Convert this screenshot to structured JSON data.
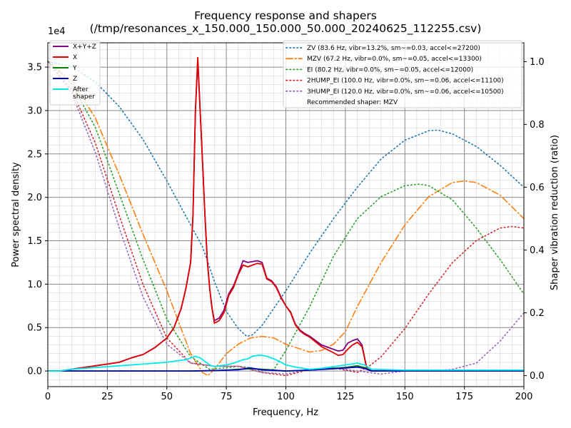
{
  "chart_data": {
    "type": "line",
    "title_line1": "Frequency response and shapers",
    "title_line2": "(/tmp/resonances_x_150.000_150.000_50.000_20240625_112255.csv)",
    "xlabel": "Frequency, Hz",
    "ylabel_left": "Power spectral density",
    "ylabel_right": "Shaper vibration reduction (ratio)",
    "y_left_multiplier": "1e4",
    "xlim": [
      0,
      200
    ],
    "ylim_left": [
      -1800,
      37800
    ],
    "ylim_right": [
      -0.035,
      1.06
    ],
    "x_ticks": [
      0,
      25,
      50,
      75,
      100,
      125,
      150,
      175,
      200
    ],
    "x_tick_labels": [
      "0",
      "25",
      "50",
      "75",
      "100",
      "125",
      "150",
      "175",
      "200"
    ],
    "y_left_ticks": [
      0,
      5000,
      10000,
      15000,
      20000,
      25000,
      30000,
      35000
    ],
    "y_left_tick_labels": [
      "0.0",
      "0.5",
      "1.0",
      "1.5",
      "2.0",
      "2.5",
      "3.0",
      "3.5"
    ],
    "y_right_ticks": [
      0,
      0.2,
      0.4,
      0.6,
      0.8,
      1.0
    ],
    "y_right_tick_labels": [
      "0.0",
      "0.2",
      "0.4",
      "0.6",
      "0.8",
      "1.0"
    ],
    "grid": true,
    "legend_left_placement": "upper-left",
    "legend_right_placement": "upper-right",
    "legend_left": [
      "X+Y+Z",
      "X",
      "Y",
      "Z",
      "After\nshaper"
    ],
    "legend_right": [
      "ZV (83.6 Hz, vibr=13.2%, sm~=0.03, accel<=27200)",
      "MZV (67.2 Hz, vibr=0.0%, sm~=0.05, accel<=13300)",
      "EI (80.2 Hz, vibr=0.0%, sm~=0.05, accel<=12000)",
      "2HUMP_EI (100.0 Hz, vibr=0.0%, sm~=0.06, accel<=11100)",
      "3HUMP_EI (120.0 Hz, vibr=0.0%, sm~=0.06, accel<=10500)",
      "Recommended shaper: MZV"
    ],
    "psd_series": [
      {
        "name": "X+Y+Z",
        "color": "#800080",
        "x": [
          0,
          5,
          10,
          15,
          20,
          25,
          30,
          35,
          40,
          45,
          50,
          53,
          56,
          58,
          60,
          61,
          62,
          63,
          64,
          65,
          66,
          67,
          68,
          69,
          70,
          72,
          74,
          76,
          78,
          80,
          82,
          84,
          86,
          88,
          90,
          92,
          94,
          96,
          98,
          100,
          102,
          104,
          106,
          108,
          110,
          115,
          120,
          122,
          124,
          126,
          128,
          130,
          132,
          134,
          136,
          150,
          175,
          200
        ],
        "y": [
          0,
          0,
          200,
          400,
          600,
          800,
          1000,
          1500,
          1900,
          2700,
          3800,
          5000,
          7200,
          9500,
          12500,
          18000,
          30000,
          35800,
          30000,
          24000,
          18000,
          12800,
          9500,
          7200,
          5800,
          6100,
          7000,
          8900,
          9800,
          11200,
          12700,
          12500,
          12600,
          12700,
          12500,
          10700,
          10400,
          9700,
          8500,
          7500,
          6800,
          5400,
          4700,
          4300,
          4000,
          3000,
          2500,
          2300,
          2400,
          3200,
          3500,
          3700,
          3000,
          300,
          0,
          0,
          0,
          0
        ]
      },
      {
        "name": "X",
        "color": "#e00000",
        "x": [
          0,
          5,
          10,
          15,
          20,
          25,
          30,
          35,
          40,
          45,
          50,
          53,
          56,
          58,
          60,
          61,
          62,
          63,
          64,
          65,
          66,
          67,
          68,
          69,
          70,
          72,
          74,
          76,
          78,
          80,
          82,
          84,
          86,
          88,
          90,
          92,
          94,
          96,
          98,
          100,
          102,
          104,
          106,
          108,
          110,
          115,
          120,
          122,
          124,
          126,
          128,
          130,
          132,
          134,
          136,
          150,
          175,
          200
        ],
        "y": [
          0,
          0,
          200,
          400,
          600,
          800,
          1000,
          1500,
          1900,
          2700,
          3800,
          5000,
          7200,
          9500,
          12500,
          18000,
          30000,
          36100,
          30000,
          24000,
          18000,
          12800,
          9500,
          7200,
          5500,
          5800,
          6700,
          8700,
          9600,
          11100,
          12200,
          12000,
          12200,
          12400,
          12300,
          10600,
          10300,
          9600,
          8400,
          7500,
          6700,
          5300,
          4600,
          4200,
          3900,
          2800,
          2100,
          1800,
          1900,
          2500,
          3000,
          3300,
          2800,
          300,
          0,
          0,
          0,
          0
        ]
      },
      {
        "name": "Y",
        "color": "#008000",
        "x": [
          0,
          20,
          40,
          60,
          70,
          75,
          80,
          85,
          90,
          100,
          110,
          120,
          125,
          130,
          133,
          136,
          150,
          175,
          200
        ],
        "y": [
          0,
          0,
          0,
          0,
          50,
          100,
          200,
          250,
          200,
          0,
          100,
          300,
          400,
          600,
          400,
          0,
          0,
          0,
          0
        ]
      },
      {
        "name": "Z",
        "color": "#0000c0",
        "x": [
          0,
          20,
          40,
          60,
          70,
          75,
          80,
          85,
          90,
          100,
          110,
          120,
          125,
          130,
          133,
          136,
          150,
          175,
          200
        ],
        "y": [
          0,
          0,
          0,
          0,
          50,
          100,
          150,
          350,
          150,
          0,
          100,
          250,
          350,
          450,
          300,
          0,
          0,
          0,
          0
        ]
      },
      {
        "name": "After\nshaper",
        "color": "#00e8e8",
        "x": [
          0,
          5,
          10,
          20,
          30,
          40,
          50,
          55,
          58,
          60,
          62,
          64,
          66,
          68,
          70,
          72,
          75,
          78,
          80,
          82,
          84,
          86,
          88,
          90,
          92,
          95,
          98,
          100,
          105,
          110,
          115,
          120,
          125,
          130,
          133,
          136,
          150,
          175,
          200
        ],
        "y": [
          0,
          0,
          200,
          400,
          600,
          800,
          1000,
          1200,
          1300,
          1500,
          1700,
          1500,
          1100,
          700,
          500,
          600,
          700,
          900,
          1100,
          1300,
          1400,
          1700,
          1800,
          1800,
          1700,
          1400,
          1000,
          700,
          400,
          200,
          300,
          500,
          700,
          900,
          700,
          200,
          100,
          100,
          100
        ]
      }
    ],
    "shaper_series": [
      {
        "name": "ZV (83.6 Hz, vibr=13.2%, sm~=0.03, accel<=27200)",
        "color": "#1f77b4",
        "dash": "dotted",
        "x": [
          0,
          10,
          20,
          30,
          40,
          50,
          60,
          65,
          70,
          75,
          80,
          83.6,
          86,
          90,
          100,
          110,
          120,
          130,
          140,
          150,
          160,
          164,
          170,
          180,
          190,
          200
        ],
        "y": [
          1.0,
          0.985,
          0.935,
          0.857,
          0.752,
          0.62,
          0.48,
          0.41,
          0.3,
          0.205,
          0.15,
          0.125,
          0.13,
          0.16,
          0.27,
          0.39,
          0.5,
          0.6,
          0.69,
          0.75,
          0.78,
          0.782,
          0.77,
          0.73,
          0.67,
          0.6
        ]
      },
      {
        "name": "MZV (67.2 Hz, vibr=0.0%, sm~=0.05, accel<=13300)",
        "color": "#ff7f0e",
        "dash": "dashdot",
        "x": [
          0,
          10,
          20,
          30,
          40,
          50,
          55,
          60,
          65,
          67.2,
          70,
          75,
          80,
          85,
          90,
          95,
          100,
          110,
          115,
          120,
          125,
          130,
          140,
          150,
          160,
          170,
          175,
          180,
          190,
          200
        ],
        "y": [
          1.0,
          0.94,
          0.82,
          0.64,
          0.45,
          0.27,
          0.17,
          0.07,
          0.01,
          0.0,
          0.02,
          0.07,
          0.1,
          0.12,
          0.125,
          0.12,
          0.1,
          0.075,
          0.08,
          0.1,
          0.14,
          0.22,
          0.36,
          0.48,
          0.57,
          0.615,
          0.62,
          0.615,
          0.575,
          0.5
        ]
      },
      {
        "name": "EI (80.2 Hz, vibr=0.0%, sm~=0.05, accel<=12000)",
        "color": "#2ca02c",
        "dash": "dotted",
        "x": [
          0,
          10,
          20,
          30,
          40,
          50,
          60,
          68,
          75,
          80.2,
          85,
          90,
          95,
          100,
          110,
          120,
          130,
          140,
          150,
          156,
          160,
          170,
          180,
          190,
          200
        ],
        "y": [
          1.0,
          0.93,
          0.79,
          0.58,
          0.37,
          0.18,
          0.06,
          0.02,
          0.025,
          0.03,
          0.025,
          0.015,
          0.02,
          0.08,
          0.22,
          0.38,
          0.5,
          0.57,
          0.605,
          0.61,
          0.605,
          0.56,
          0.47,
          0.37,
          0.26
        ]
      },
      {
        "name": "2HUMP_EI (100.0 Hz, vibr=0.0%, sm~=0.06, accel<=11100)",
        "color": "#d62728",
        "dash": "dotted",
        "x": [
          0,
          10,
          20,
          30,
          40,
          50,
          60,
          70,
          80,
          90,
          100,
          110,
          120,
          130,
          135,
          140,
          150,
          160,
          170,
          180,
          190,
          195,
          200
        ],
        "y": [
          1.0,
          0.91,
          0.74,
          0.51,
          0.29,
          0.12,
          0.04,
          0.03,
          0.03,
          0.01,
          0.0,
          0.02,
          0.025,
          0.01,
          0.03,
          0.06,
          0.15,
          0.26,
          0.36,
          0.43,
          0.47,
          0.475,
          0.47
        ]
      },
      {
        "name": "3HUMP_EI (120.0 Hz, vibr=0.0%, sm~=0.06, accel<=10500)",
        "color": "#9467bd",
        "dash": "dotted",
        "x": [
          0,
          10,
          20,
          30,
          40,
          50,
          60,
          70,
          80,
          90,
          100,
          110,
          120,
          130,
          140,
          150,
          160,
          170,
          180,
          190,
          200
        ],
        "y": [
          1.0,
          0.9,
          0.71,
          0.47,
          0.25,
          0.1,
          0.04,
          0.03,
          0.03,
          0.01,
          0.005,
          0.02,
          0.025,
          0.015,
          0.005,
          0.015,
          0.015,
          0.02,
          0.04,
          0.11,
          0.2
        ]
      }
    ]
  }
}
